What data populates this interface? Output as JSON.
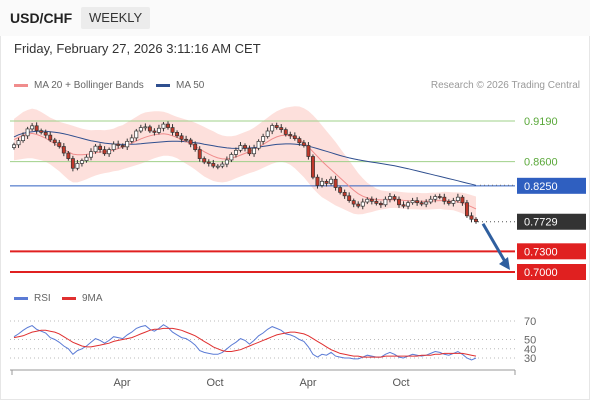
{
  "header": {
    "symbol": "USD/CHF",
    "period": "WEEKLY",
    "timestamp": "Friday, February 27, 2026 3:11:16 AM CET",
    "credit": "Research © 2026 Trading Central"
  },
  "legend": {
    "ma20": {
      "label": "MA 20 + Bollinger Bands",
      "color": "#f08c8c"
    },
    "ma50": {
      "label": "MA 50",
      "color": "#2f4f8f"
    }
  },
  "rsi_legend": {
    "rsi": {
      "label": "RSI",
      "color": "#5b7bd5"
    },
    "ma9": {
      "label": "9MA",
      "color": "#e03030"
    }
  },
  "chart_data": [
    {
      "type": "candlestick",
      "yscale": [
        0.699,
        0.926
      ],
      "levels": [
        {
          "value": 0.919,
          "label": "0.9190",
          "kind": "resistance",
          "color": "#9fd08a"
        },
        {
          "value": 0.86,
          "label": "0.8600",
          "kind": "resistance",
          "color": "#9fd08a"
        },
        {
          "value": 0.825,
          "label": "0.8250",
          "kind": "pivot",
          "color": "#2f5fc0"
        },
        {
          "value": 0.7729,
          "label": "0.7729",
          "kind": "last",
          "color": "#333333"
        },
        {
          "value": 0.73,
          "label": "0.7300",
          "kind": "support",
          "color": "#e02020"
        },
        {
          "value": 0.7,
          "label": "0.7000",
          "kind": "support",
          "color": "#e02020"
        }
      ],
      "x_ticks": [
        "Apr",
        "Oct",
        "Apr",
        "Oct"
      ],
      "close": [
        0.8845,
        0.8905,
        0.8975,
        0.9075,
        0.912,
        0.905,
        0.9025,
        0.8985,
        0.8915,
        0.8875,
        0.882,
        0.8725,
        0.8645,
        0.8505,
        0.8575,
        0.8615,
        0.8665,
        0.8745,
        0.8825,
        0.8775,
        0.8715,
        0.8775,
        0.8855,
        0.8835,
        0.8815,
        0.8895,
        0.8945,
        0.9045,
        0.9095,
        0.9105,
        0.9045,
        0.9025,
        0.9085,
        0.9145,
        0.9095,
        0.9025,
        0.8975,
        0.8925,
        0.8915,
        0.8855,
        0.8775,
        0.8645,
        0.8595,
        0.8575,
        0.8535,
        0.8535,
        0.8565,
        0.8625,
        0.8705,
        0.8765,
        0.8835,
        0.8795,
        0.8715,
        0.8795,
        0.8895,
        0.8965,
        0.9045,
        0.9125,
        0.9095,
        0.9065,
        0.8995,
        0.8975,
        0.8935,
        0.8875,
        0.8835,
        0.8675,
        0.8375,
        0.8255,
        0.8315,
        0.8285,
        0.8345,
        0.8225,
        0.8155,
        0.8105,
        0.8035,
        0.7985,
        0.7955,
        0.8015,
        0.8055,
        0.8025,
        0.7995,
        0.7975,
        0.8055,
        0.8095,
        0.8055,
        0.7975,
        0.7955,
        0.8005,
        0.8035,
        0.8005,
        0.7985,
        0.8015,
        0.8055,
        0.8095,
        0.8085,
        0.8025,
        0.7995,
        0.8035,
        0.8085,
        0.8005,
        0.7815,
        0.7765,
        0.7729
      ],
      "ma20": [
        0.892,
        0.895,
        0.898,
        0.9,
        0.901,
        0.8995,
        0.897,
        0.894,
        0.89,
        0.886,
        0.882,
        0.878,
        0.874,
        0.871,
        0.87,
        0.87,
        0.8705,
        0.8715,
        0.873,
        0.874,
        0.8745,
        0.8755,
        0.877,
        0.879,
        0.881,
        0.884,
        0.887,
        0.89,
        0.893,
        0.8955,
        0.8975,
        0.899,
        0.9,
        0.9005,
        0.8995,
        0.8975,
        0.895,
        0.892,
        0.889,
        0.886,
        0.8825,
        0.8785,
        0.8745,
        0.871,
        0.868,
        0.8655,
        0.864,
        0.864,
        0.865,
        0.867,
        0.8695,
        0.872,
        0.8745,
        0.8775,
        0.881,
        0.885,
        0.889,
        0.893,
        0.896,
        0.898,
        0.8985,
        0.8975,
        0.8955,
        0.892,
        0.8875,
        0.8815,
        0.8745,
        0.8675,
        0.8605,
        0.8545,
        0.8485,
        0.8425,
        0.8365,
        0.8305,
        0.8245,
        0.8185,
        0.8135,
        0.81,
        0.8075,
        0.806,
        0.805,
        0.8045,
        0.8045,
        0.8048,
        0.805,
        0.8045,
        0.8038,
        0.8032,
        0.803,
        0.8028,
        0.8025,
        0.8025,
        0.8028,
        0.8032,
        0.8035,
        0.8035,
        0.803,
        0.8025,
        0.8015,
        0.8,
        0.7975,
        0.7945,
        0.7915
      ],
      "band_width": [
        0.03,
        0.032,
        0.034,
        0.035,
        0.036,
        0.036,
        0.035,
        0.034,
        0.034,
        0.035,
        0.036,
        0.038,
        0.04,
        0.041,
        0.04,
        0.038,
        0.036,
        0.034,
        0.033,
        0.032,
        0.031,
        0.031,
        0.031,
        0.032,
        0.032,
        0.033,
        0.034,
        0.035,
        0.036,
        0.036,
        0.035,
        0.034,
        0.033,
        0.032,
        0.031,
        0.03,
        0.03,
        0.031,
        0.032,
        0.033,
        0.034,
        0.035,
        0.036,
        0.036,
        0.036,
        0.035,
        0.034,
        0.033,
        0.032,
        0.031,
        0.031,
        0.031,
        0.031,
        0.032,
        0.033,
        0.034,
        0.035,
        0.036,
        0.037,
        0.038,
        0.04,
        0.042,
        0.045,
        0.048,
        0.05,
        0.052,
        0.053,
        0.053,
        0.052,
        0.05,
        0.048,
        0.046,
        0.043,
        0.04,
        0.037,
        0.034,
        0.03,
        0.026,
        0.022,
        0.019,
        0.016,
        0.014,
        0.013,
        0.012,
        0.012,
        0.012,
        0.012,
        0.012,
        0.012,
        0.012,
        0.012,
        0.012,
        0.012,
        0.012,
        0.012,
        0.013,
        0.013,
        0.013,
        0.014,
        0.015,
        0.016,
        0.017,
        0.018
      ],
      "ma50": [
        0.896,
        0.899,
        0.901,
        0.9025,
        0.9035,
        0.904,
        0.9042,
        0.904,
        0.9035,
        0.9028,
        0.9018,
        0.9005,
        0.899,
        0.8973,
        0.8955,
        0.8937,
        0.892,
        0.8905,
        0.8892,
        0.888,
        0.887,
        0.8862,
        0.8856,
        0.8852,
        0.885,
        0.885,
        0.8852,
        0.8855,
        0.886,
        0.8866,
        0.8872,
        0.8878,
        0.8884,
        0.889,
        0.8894,
        0.8896,
        0.8896,
        0.8894,
        0.889,
        0.8884,
        0.8876,
        0.8866,
        0.8854,
        0.8842,
        0.883,
        0.8818,
        0.8808,
        0.88,
        0.8795,
        0.8792,
        0.8792,
        0.8794,
        0.8798,
        0.8804,
        0.8812,
        0.8822,
        0.8832,
        0.8842,
        0.885,
        0.8855,
        0.8858,
        0.8858,
        0.8855,
        0.8848,
        0.8838,
        0.8824,
        0.8808,
        0.879,
        0.877,
        0.875,
        0.873,
        0.871,
        0.869,
        0.8672,
        0.8655,
        0.864,
        0.8627,
        0.8615,
        0.8604,
        0.8594,
        0.8584,
        0.8574,
        0.8563,
        0.8552,
        0.854,
        0.8527,
        0.8513,
        0.8498,
        0.8482,
        0.8466,
        0.845,
        0.8434,
        0.8418,
        0.8402,
        0.8386,
        0.837,
        0.8354,
        0.8338,
        0.8322,
        0.8306,
        0.829,
        0.8274,
        0.8258
      ]
    },
    {
      "type": "line",
      "name": "RSI panel",
      "yticks": [
        70,
        50,
        40,
        30
      ],
      "ylim": [
        22,
        75
      ],
      "x_ticks": [
        "Apr",
        "Oct",
        "Apr",
        "Oct"
      ],
      "series": [
        {
          "name": "RSI",
          "values": [
            53,
            56,
            60,
            63,
            65,
            61,
            59,
            57,
            52,
            50,
            47,
            43,
            40,
            34,
            38,
            40,
            43,
            47,
            51,
            49,
            46,
            49,
            53,
            52,
            51,
            55,
            58,
            62,
            64,
            65,
            61,
            59,
            62,
            66,
            63,
            58,
            55,
            52,
            51,
            48,
            44,
            38,
            36,
            35,
            34,
            34,
            36,
            40,
            44,
            47,
            51,
            49,
            45,
            49,
            54,
            57,
            61,
            64,
            62,
            60,
            56,
            55,
            53,
            50,
            48,
            42,
            34,
            31,
            34,
            33,
            36,
            32,
            31,
            30,
            30,
            29,
            29,
            31,
            33,
            32,
            31,
            31,
            34,
            36,
            34,
            31,
            30,
            32,
            34,
            33,
            32,
            33,
            35,
            37,
            36,
            34,
            33,
            35,
            37,
            34,
            30,
            28,
            30
          ]
        },
        {
          "name": "9MA",
          "values": [
            52,
            53,
            54,
            56,
            58,
            59,
            60,
            60,
            59,
            58,
            56,
            53,
            50,
            47,
            45,
            43,
            42,
            42,
            43,
            44,
            45,
            46,
            48,
            49,
            50,
            51,
            52,
            54,
            56,
            58,
            60,
            61,
            61,
            62,
            62,
            62,
            61,
            60,
            58,
            56,
            54,
            51,
            48,
            45,
            42,
            40,
            38,
            37,
            37,
            38,
            39,
            41,
            43,
            45,
            47,
            49,
            51,
            53,
            55,
            56,
            57,
            58,
            58,
            57,
            56,
            54,
            51,
            48,
            45,
            42,
            39,
            37,
            35,
            34,
            33,
            32,
            32,
            31,
            31,
            31,
            31,
            31,
            32,
            32,
            32,
            32,
            32,
            32,
            32,
            32,
            33,
            33,
            33,
            34,
            34,
            35,
            35,
            35,
            35,
            35,
            34,
            33,
            32
          ]
        }
      ]
    }
  ]
}
